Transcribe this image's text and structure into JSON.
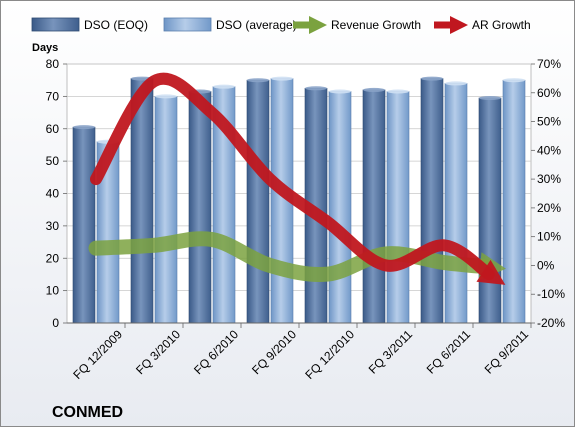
{
  "chart_data": {
    "type": "bar",
    "company": "CONMED",
    "categories": [
      "FQ 12/2009",
      "FQ 3/2010",
      "FQ 6/2010",
      "FQ 9/2010",
      "FQ 12/2010",
      "FQ 3/2011",
      "FQ 6/2011",
      "FQ 9/2011"
    ],
    "y_left_label": "Days",
    "ylim_left": [
      0,
      80
    ],
    "yticks_left": [
      0,
      10,
      20,
      30,
      40,
      50,
      60,
      70,
      80
    ],
    "ylim_right": [
      -20,
      70
    ],
    "yticks_right": [
      "-20%",
      "-10%",
      "0%",
      "10%",
      "20%",
      "30%",
      "40%",
      "50%",
      "60%",
      "70%"
    ],
    "bar_series": [
      {
        "name": "DSO (EOQ)",
        "color": "#4f6f9c",
        "values": [
          60.5,
          75.5,
          71.5,
          75.0,
          72.5,
          72.0,
          75.5,
          69.5
        ]
      },
      {
        "name": "DSO (average)",
        "color": "#8fb2dc",
        "values": [
          56.0,
          70.0,
          73.0,
          75.5,
          71.5,
          71.5,
          74.0,
          75.0
        ]
      }
    ],
    "line_series": [
      {
        "name": "Revenue Growth",
        "axis": "right",
        "color": "#7ba23f",
        "values": [
          6,
          7,
          9,
          0,
          -3,
          4,
          1,
          -1
        ]
      },
      {
        "name": "AR Growth",
        "axis": "right",
        "color": "#c0171f",
        "values": [
          30,
          64,
          53,
          30,
          15,
          0,
          7,
          -6
        ]
      }
    ],
    "grid": true,
    "legend_position": "top"
  }
}
